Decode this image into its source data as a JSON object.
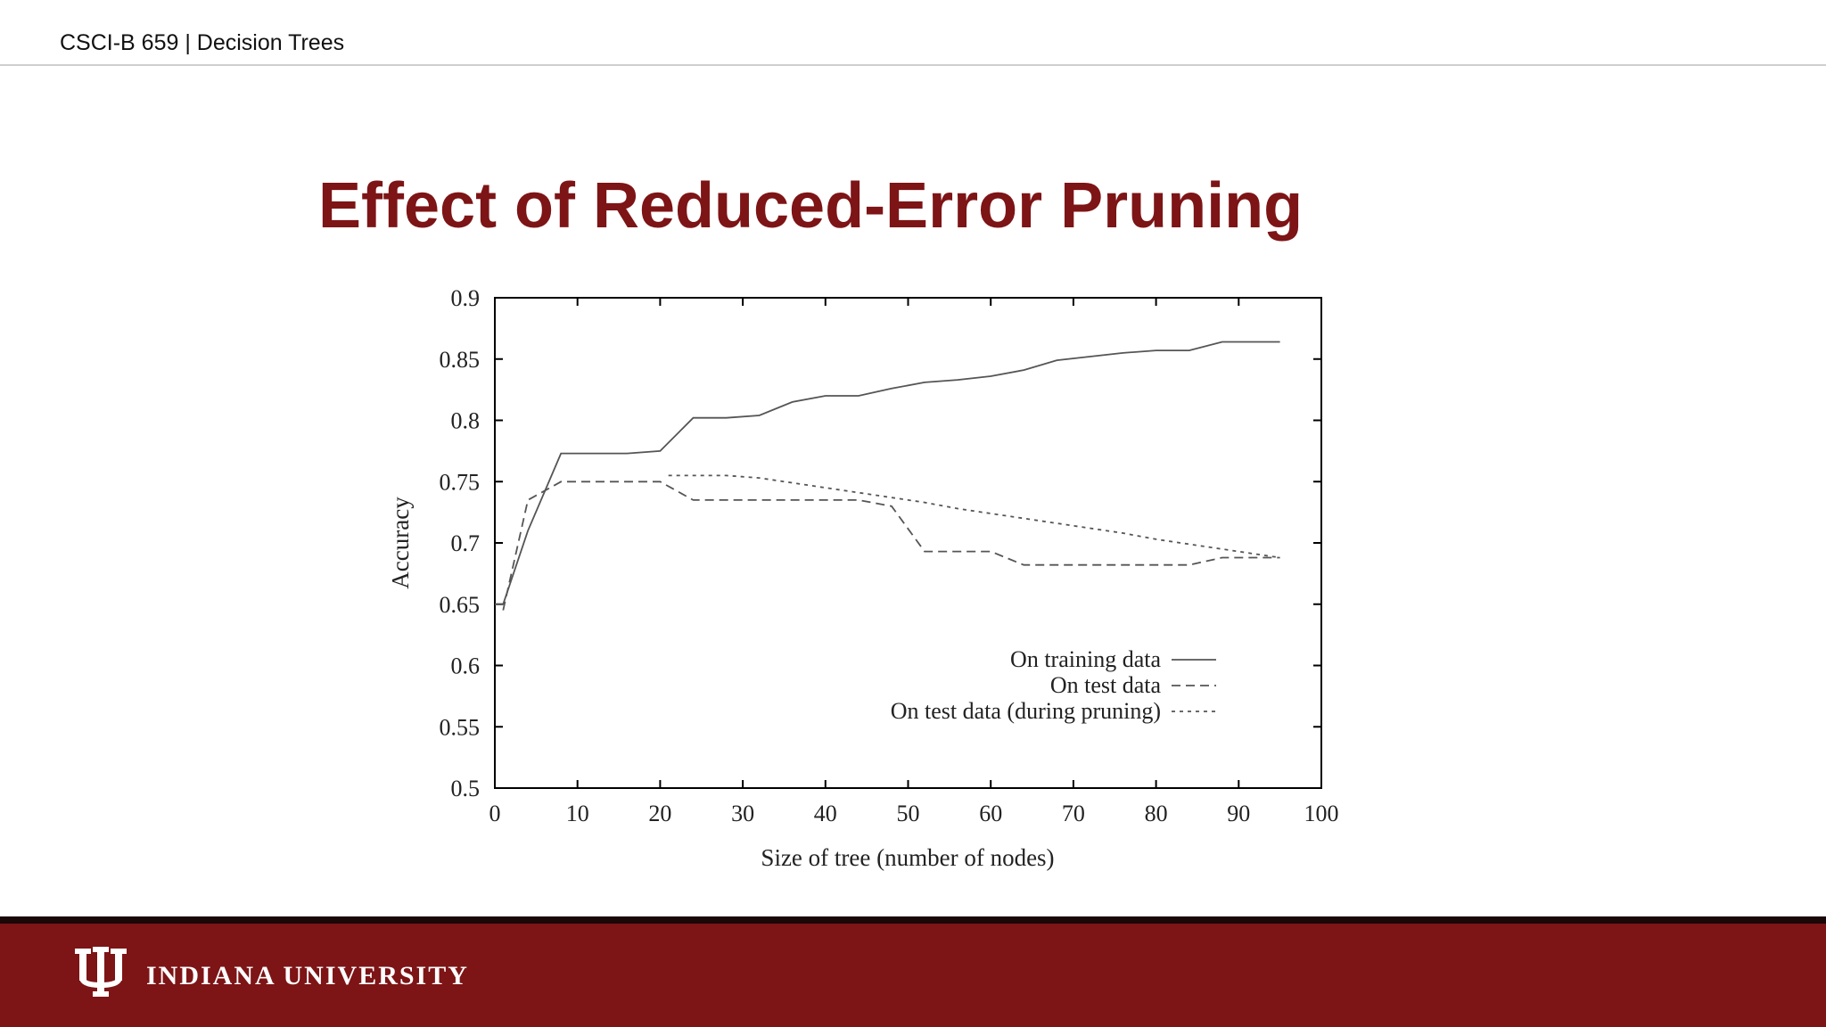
{
  "header": {
    "breadcrumb": "CSCI-B 659 | Decision Trees"
  },
  "slide": {
    "title": "Effect of Reduced-Error Pruning"
  },
  "footer": {
    "university_name": "INDIANA UNIVERSITY",
    "logo_icon": "iu-trident-icon"
  },
  "colors": {
    "brand": "#7d1416",
    "footer_dark": "#1a0707",
    "line": "#555555"
  },
  "chart_data": {
    "type": "line",
    "xlabel": "Size of tree (number of nodes)",
    "ylabel": "Accuracy",
    "xlim": [
      0,
      100
    ],
    "ylim": [
      0.5,
      0.9
    ],
    "xticks": [
      "0",
      "10",
      "20",
      "30",
      "40",
      "50",
      "60",
      "70",
      "80",
      "90",
      "100"
    ],
    "yticks": [
      "0.5",
      "0.55",
      "0.6",
      "0.65",
      "0.7",
      "0.75",
      "0.8",
      "0.85",
      "0.9"
    ],
    "legend_position": "bottom-right",
    "series": [
      {
        "name": "On training data",
        "style": "solid",
        "x": [
          0,
          1,
          4,
          8,
          12,
          16,
          20,
          24,
          28,
          32,
          36,
          40,
          44,
          48,
          52,
          56,
          60,
          64,
          68,
          72,
          76,
          80,
          84,
          88,
          92,
          95
        ],
        "y": [
          0.65,
          0.65,
          0.71,
          0.773,
          0.773,
          0.773,
          0.775,
          0.802,
          0.802,
          0.804,
          0.815,
          0.82,
          0.82,
          0.826,
          0.831,
          0.833,
          0.836,
          0.841,
          0.849,
          0.852,
          0.855,
          0.857,
          0.857,
          0.864,
          0.864,
          0.864
        ]
      },
      {
        "name": "On test data",
        "style": "dashed",
        "x": [
          1,
          4,
          8,
          12,
          16,
          20,
          24,
          28,
          32,
          36,
          40,
          44,
          48,
          52,
          56,
          60,
          64,
          68,
          72,
          76,
          80,
          84,
          88,
          92,
          95
        ],
        "y": [
          0.645,
          0.735,
          0.75,
          0.75,
          0.75,
          0.75,
          0.735,
          0.735,
          0.735,
          0.735,
          0.735,
          0.735,
          0.73,
          0.693,
          0.693,
          0.693,
          0.682,
          0.682,
          0.682,
          0.682,
          0.682,
          0.682,
          0.688,
          0.688,
          0.688
        ]
      },
      {
        "name": "On test data (during pruning)",
        "style": "dotted",
        "x": [
          21,
          24,
          28,
          32,
          36,
          40,
          44,
          48,
          52,
          56,
          60,
          64,
          68,
          72,
          76,
          80,
          84,
          88,
          92,
          95
        ],
        "y": [
          0.755,
          0.755,
          0.755,
          0.753,
          0.749,
          0.745,
          0.741,
          0.737,
          0.733,
          0.728,
          0.724,
          0.72,
          0.716,
          0.712,
          0.708,
          0.703,
          0.699,
          0.695,
          0.691,
          0.688
        ]
      }
    ]
  }
}
